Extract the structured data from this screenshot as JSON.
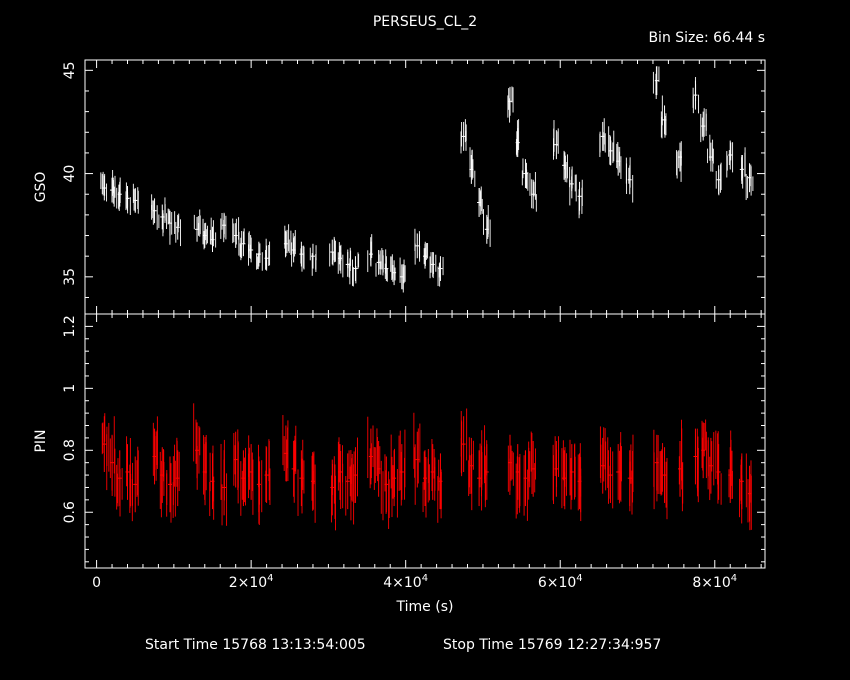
{
  "chart_data": [
    {
      "type": "scatter",
      "title": "PERSEUS_CL_2",
      "subtitle": "Bin Size: 66.44 s",
      "ylabel": "GSO",
      "xlim": [
        -1500,
        86500
      ],
      "ylim": [
        33.2,
        45.5
      ],
      "yticks": [
        35,
        40,
        45
      ],
      "color": "#ffffff",
      "series": [
        {
          "x": [
            1000,
            2000,
            3000,
            4000,
            5000,
            7500,
            8500,
            9500,
            10500,
            13000,
            14000,
            15000,
            16500,
            18000,
            19000,
            20000,
            21000,
            22000,
            24500,
            25500,
            26500,
            28000,
            30500,
            31500,
            32500,
            33500,
            35500,
            36500,
            37500,
            38500,
            39500,
            41500,
            42500,
            43500,
            44500,
            47500,
            48500,
            49500,
            50500,
            53500,
            54500,
            55500,
            56500,
            59500,
            60500,
            61500,
            62500,
            65500,
            66500,
            67500,
            69000,
            72500,
            73500,
            75500,
            77500,
            78500,
            79500,
            80500,
            82000,
            83500,
            84500
          ],
          "y": [
            39.3,
            39.2,
            39.0,
            38.8,
            38.7,
            38.2,
            37.9,
            37.6,
            37.4,
            37.3,
            37.0,
            36.8,
            37.5,
            37.0,
            36.6,
            36.3,
            36.1,
            35.9,
            36.6,
            36.3,
            36.1,
            36.0,
            36.2,
            35.9,
            35.6,
            35.4,
            36.1,
            35.7,
            35.4,
            35.2,
            35.0,
            36.5,
            36.0,
            35.6,
            35.4,
            41.8,
            40.2,
            38.6,
            37.3,
            43.5,
            41.5,
            40.0,
            39.0,
            41.4,
            40.4,
            39.5,
            38.9,
            41.8,
            41.1,
            40.6,
            39.7,
            44.5,
            42.6,
            40.8,
            43.8,
            42.3,
            40.8,
            39.7,
            40.9,
            40.2,
            39.8
          ],
          "yerr": [
            0.6,
            0.6,
            0.6,
            0.6,
            0.6,
            0.6,
            0.6,
            0.6,
            0.6,
            0.6,
            0.6,
            0.6,
            0.6,
            0.6,
            0.6,
            0.6,
            0.6,
            0.6,
            0.6,
            0.6,
            0.6,
            0.6,
            0.6,
            0.6,
            0.6,
            0.6,
            0.6,
            0.6,
            0.6,
            0.6,
            0.6,
            0.6,
            0.6,
            0.6,
            0.6,
            0.7,
            0.7,
            0.7,
            0.7,
            0.7,
            0.7,
            0.7,
            0.7,
            0.7,
            0.7,
            0.7,
            0.7,
            0.7,
            0.7,
            0.7,
            0.7,
            0.7,
            0.7,
            0.7,
            0.7,
            0.7,
            0.7,
            0.7,
            0.7,
            0.7,
            0.7
          ]
        }
      ]
    },
    {
      "type": "scatter",
      "ylabel": "PIN",
      "xlabel": "Time (s)",
      "xlim": [
        -1500,
        86500
      ],
      "ylim": [
        0.42,
        1.24
      ],
      "yticks": [
        0.6,
        0.8,
        1,
        1.2
      ],
      "xticks": [
        20000,
        40000,
        60000,
        80000
      ],
      "xticklabels": [
        "2×10",
        "4×10",
        "6×10",
        "8×10"
      ],
      "xtick_exponent": "4",
      "color": "#ff0000",
      "series": [
        {
          "x": [
            1000,
            2000,
            3000,
            4000,
            5000,
            7500,
            8500,
            9500,
            10500,
            13000,
            14000,
            15000,
            16500,
            18000,
            19000,
            20000,
            21000,
            22000,
            24500,
            25500,
            26500,
            28000,
            30500,
            31500,
            32500,
            33500,
            35500,
            36500,
            37500,
            38500,
            39500,
            41500,
            42500,
            43500,
            44500,
            47500,
            48500,
            49500,
            50500,
            53500,
            54500,
            55500,
            56500,
            59500,
            60500,
            61500,
            62500,
            65500,
            66500,
            67500,
            69000,
            72500,
            73500,
            75500,
            77500,
            78500,
            79500,
            80500,
            82000,
            83500,
            84500
          ],
          "y": [
            0.82,
            0.76,
            0.71,
            0.73,
            0.69,
            0.78,
            0.72,
            0.69,
            0.71,
            0.8,
            0.73,
            0.7,
            0.68,
            0.77,
            0.71,
            0.73,
            0.69,
            0.72,
            0.79,
            0.74,
            0.71,
            0.7,
            0.68,
            0.73,
            0.7,
            0.72,
            0.78,
            0.74,
            0.69,
            0.71,
            0.73,
            0.77,
            0.71,
            0.73,
            0.7,
            0.82,
            0.75,
            0.71,
            0.73,
            0.76,
            0.73,
            0.71,
            0.74,
            0.74,
            0.71,
            0.73,
            0.7,
            0.75,
            0.72,
            0.73,
            0.71,
            0.76,
            0.72,
            0.74,
            0.78,
            0.8,
            0.75,
            0.73,
            0.72,
            0.7,
            0.66
          ],
          "yerr": [
            0.09,
            0.09,
            0.09,
            0.09,
            0.09,
            0.09,
            0.09,
            0.09,
            0.09,
            0.09,
            0.09,
            0.09,
            0.09,
            0.09,
            0.09,
            0.09,
            0.09,
            0.09,
            0.09,
            0.09,
            0.09,
            0.09,
            0.09,
            0.09,
            0.09,
            0.09,
            0.09,
            0.09,
            0.09,
            0.09,
            0.09,
            0.09,
            0.09,
            0.09,
            0.09,
            0.09,
            0.09,
            0.09,
            0.09,
            0.09,
            0.09,
            0.09,
            0.09,
            0.09,
            0.09,
            0.09,
            0.09,
            0.09,
            0.09,
            0.09,
            0.09,
            0.09,
            0.09,
            0.09,
            0.09,
            0.09,
            0.09,
            0.09,
            0.09,
            0.09,
            0.09
          ]
        }
      ]
    }
  ],
  "footer": {
    "start": "Start Time 15768 13:13:54:005",
    "stop": "Stop Time 15769 12:27:34:957"
  }
}
